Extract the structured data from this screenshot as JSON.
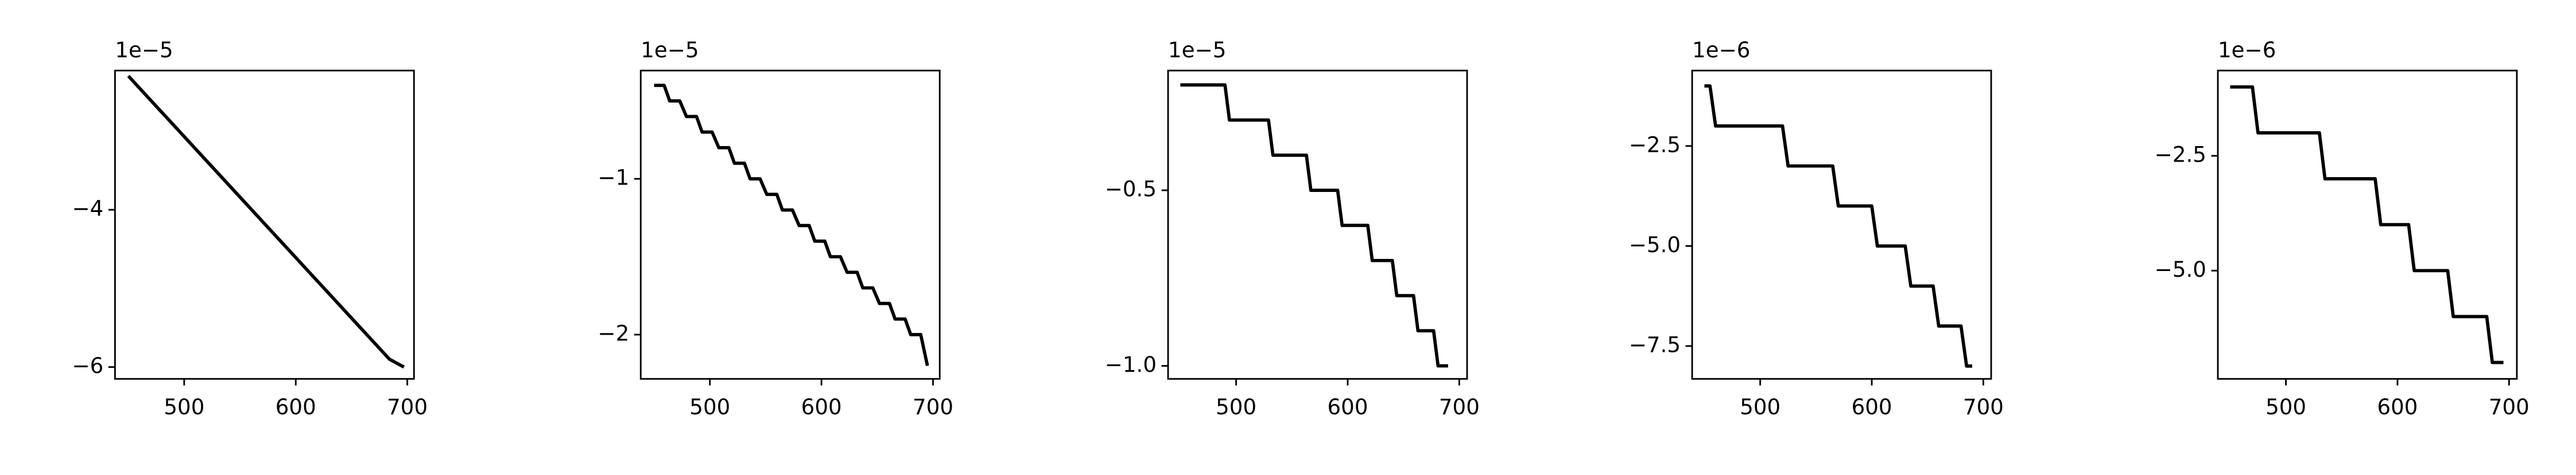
{
  "chart_data": [
    {
      "type": "line",
      "offset_text": "1e−5",
      "x": [
        450,
        463,
        476,
        489,
        502,
        515,
        528,
        541,
        554,
        567,
        580,
        593,
        606,
        619,
        632,
        645,
        658,
        671,
        684,
        697
      ],
      "series": [
        {
          "color": "#000000",
          "values": [
            -2.3e-05,
            -2.5e-05,
            -2.7e-05,
            -2.9e-05,
            -3.1e-05,
            -3.3e-05,
            -3.5e-05,
            -3.7e-05,
            -3.9e-05,
            -4.1e-05,
            -4.3e-05,
            -4.5e-05,
            -4.7e-05,
            -4.9e-05,
            -5.1e-05,
            -5.3e-05,
            -5.5e-05,
            -5.7e-05,
            -5.9e-05,
            -6e-05
          ]
        }
      ],
      "xlim": [
        438,
        706
      ],
      "ylim": [
        -6.15e-05,
        -2.23e-05
      ],
      "xticks": [
        500,
        600,
        700
      ],
      "yticks": [
        {
          "value": -4e-05,
          "label": "−4"
        },
        {
          "value": -6e-05,
          "label": "−6"
        }
      ]
    },
    {
      "type": "line",
      "offset_text": "1e−5",
      "x": [
        450,
        459,
        464,
        473,
        479,
        488,
        493,
        502,
        508,
        517,
        522,
        531,
        536,
        545,
        551,
        560,
        565,
        574,
        580,
        589,
        594,
        603,
        608,
        617,
        623,
        632,
        637,
        646,
        652,
        661,
        666,
        675,
        680,
        689,
        695
      ],
      "series": [
        {
          "color": "#000000",
          "values": [
            -4e-06,
            -4e-06,
            -5e-06,
            -5e-06,
            -6e-06,
            -6e-06,
            -7e-06,
            -7e-06,
            -8e-06,
            -8e-06,
            -9e-06,
            -9e-06,
            -1e-05,
            -1e-05,
            -1.1e-05,
            -1.1e-05,
            -1.2e-05,
            -1.2e-05,
            -1.3e-05,
            -1.3e-05,
            -1.4e-05,
            -1.4e-05,
            -1.5e-05,
            -1.5e-05,
            -1.6e-05,
            -1.6e-05,
            -1.7e-05,
            -1.7e-05,
            -1.8e-05,
            -1.8e-05,
            -1.9e-05,
            -1.9e-05,
            -2e-05,
            -2e-05,
            -2.2e-05
          ]
        }
      ],
      "xlim": [
        438,
        706
      ],
      "ylim": [
        -2.284e-05,
        -3.05e-06
      ],
      "xticks": [
        500,
        600,
        700
      ],
      "yticks": [
        {
          "value": -1e-05,
          "label": "−1"
        },
        {
          "value": -2e-05,
          "label": "−2"
        }
      ]
    },
    {
      "type": "line",
      "offset_text": "1e−5",
      "x": [
        450,
        490,
        494,
        529,
        533,
        563,
        567,
        591,
        595,
        618,
        622,
        640,
        644,
        659,
        663,
        677,
        681,
        690
      ],
      "series": [
        {
          "color": "#000000",
          "values": [
            -2e-06,
            -2e-06,
            -3e-06,
            -3e-06,
            -4e-06,
            -4e-06,
            -5e-06,
            -5e-06,
            -6e-06,
            -6e-06,
            -7e-06,
            -7e-06,
            -8e-06,
            -8e-06,
            -9e-06,
            -9e-06,
            -1e-05,
            -1e-05
          ]
        }
      ],
      "xlim": [
        439,
        707
      ],
      "ylim": [
        -1.037e-05,
        -1.59e-06
      ],
      "xticks": [
        500,
        600,
        700
      ],
      "yticks": [
        {
          "value": -5e-06,
          "label": "−0.5"
        },
        {
          "value": -1e-05,
          "label": "−1.0"
        }
      ]
    },
    {
      "type": "line",
      "offset_text": "1e−6",
      "x": [
        450,
        455,
        460,
        520,
        525,
        565,
        570,
        600,
        605,
        630,
        635,
        655,
        660,
        680,
        685,
        690
      ],
      "series": [
        {
          "color": "#000000",
          "values": [
            -1e-06,
            -1e-06,
            -2e-06,
            -2e-06,
            -3e-06,
            -3e-06,
            -4e-06,
            -4e-06,
            -5e-06,
            -5e-06,
            -6e-06,
            -6e-06,
            -7e-06,
            -7e-06,
            -8e-06,
            -8e-06
          ]
        }
      ],
      "xlim": [
        439,
        707
      ],
      "ylim": [
        -8.32e-06,
        -6.15e-07
      ],
      "xticks": [
        500,
        600,
        700
      ],
      "yticks": [
        {
          "value": -2.5e-06,
          "label": "−2.5"
        },
        {
          "value": -5e-06,
          "label": "−5.0"
        },
        {
          "value": -7.5e-06,
          "label": "−7.5"
        }
      ]
    },
    {
      "type": "line",
      "offset_text": "1e−6",
      "x": [
        450,
        470,
        475,
        530,
        535,
        580,
        585,
        610,
        615,
        645,
        650,
        680,
        685,
        695
      ],
      "series": [
        {
          "color": "#000000",
          "values": [
            -1e-06,
            -1e-06,
            -2e-06,
            -2e-06,
            -3e-06,
            -3e-06,
            -4e-06,
            -4e-06,
            -5e-06,
            -5e-06,
            -6e-06,
            -6e-06,
            -7e-06,
            -7e-06
          ]
        }
      ],
      "xlim": [
        439,
        707
      ],
      "ylim": [
        -7.357e-06,
        -6.43e-07
      ],
      "xticks": [
        500,
        600,
        700
      ],
      "yticks": [
        {
          "value": -2.5e-06,
          "label": "−2.5"
        },
        {
          "value": -5e-06,
          "label": "−5.0"
        }
      ]
    }
  ]
}
